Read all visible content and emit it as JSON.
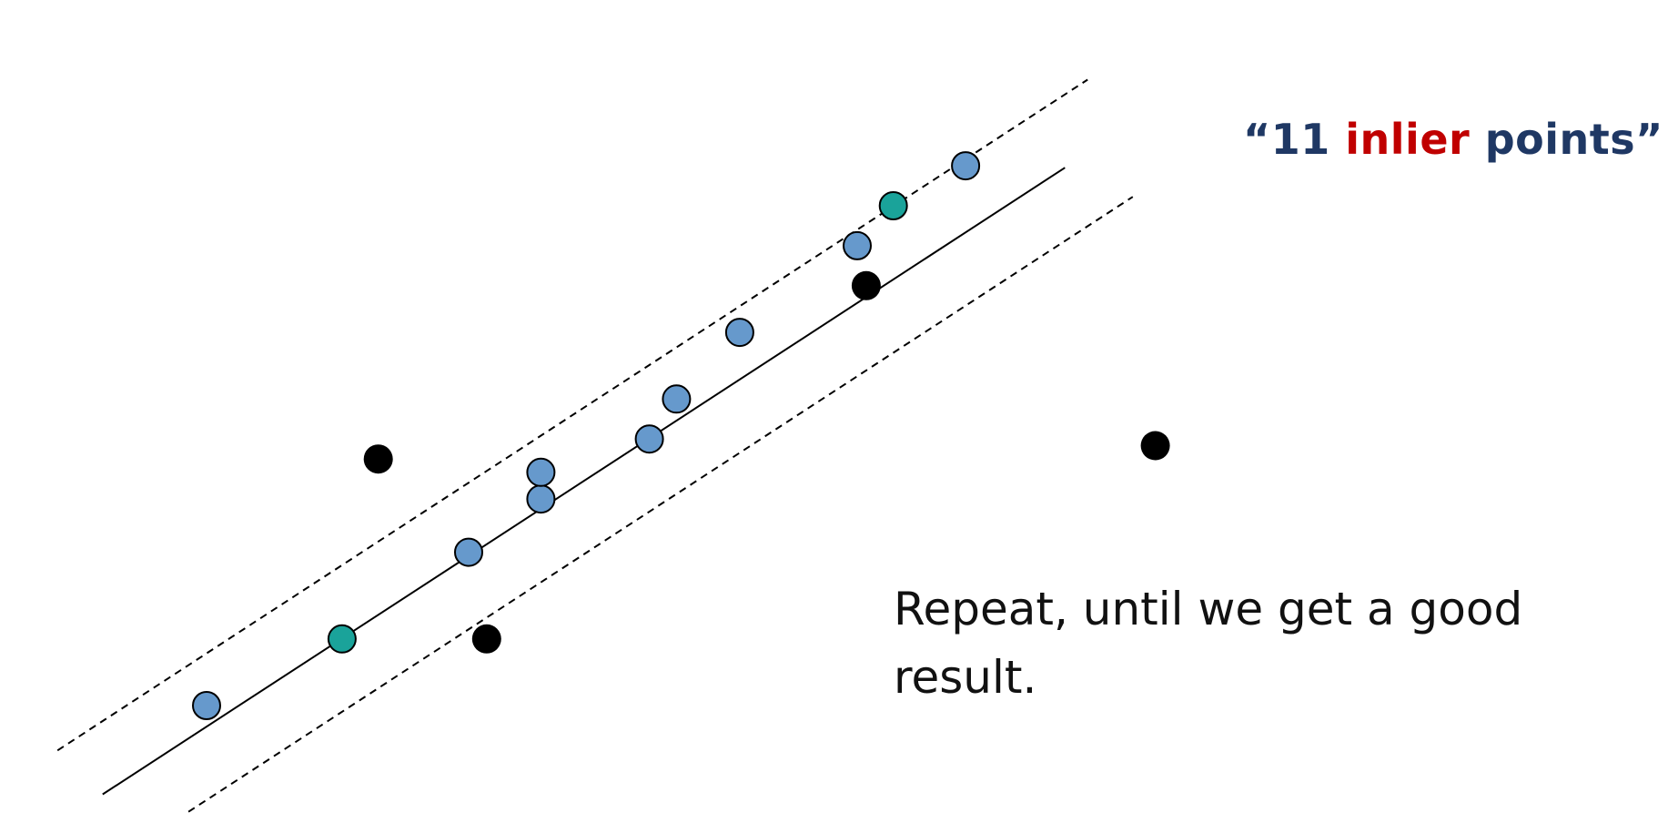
{
  "inlier_label": {
    "open_quote": "“",
    "count": "11",
    "keyword": "inlier",
    "rest": "points",
    "close_quote": "”"
  },
  "caption": "Repeat, until we get a good result.",
  "colors": {
    "label_primary": "#1f3864",
    "label_accent": "#c00000",
    "inlier_point": "#6699cc",
    "sample_point": "#1aa39a",
    "outlier_point": "#000000",
    "line": "#000000"
  },
  "points": [
    {
      "kind": "inlier",
      "x": 1.0,
      "y": 1.0
    },
    {
      "kind": "sample",
      "x": 2.5,
      "y": 2.0
    },
    {
      "kind": "inlier",
      "x": 3.9,
      "y": 3.3
    },
    {
      "kind": "inlier",
      "x": 4.7,
      "y": 4.1
    },
    {
      "kind": "inlier",
      "x": 4.7,
      "y": 4.5
    },
    {
      "kind": "inlier",
      "x": 5.9,
      "y": 5.0
    },
    {
      "kind": "inlier",
      "x": 6.2,
      "y": 5.6
    },
    {
      "kind": "inlier",
      "x": 6.9,
      "y": 6.6
    },
    {
      "kind": "inlier",
      "x": 8.2,
      "y": 7.9
    },
    {
      "kind": "sample",
      "x": 8.6,
      "y": 8.5
    },
    {
      "kind": "inlier",
      "x": 9.4,
      "y": 9.1
    },
    {
      "kind": "outlier",
      "x": 2.9,
      "y": 4.7
    },
    {
      "kind": "outlier",
      "x": 4.1,
      "y": 2.0
    },
    {
      "kind": "outlier",
      "x": 8.3,
      "y": 7.3
    },
    {
      "kind": "outlier",
      "x": 11.5,
      "y": 4.9
    }
  ],
  "model_line": {
    "slope": 0.883,
    "intercept": -0.2
  },
  "threshold_offset": 1.1
}
